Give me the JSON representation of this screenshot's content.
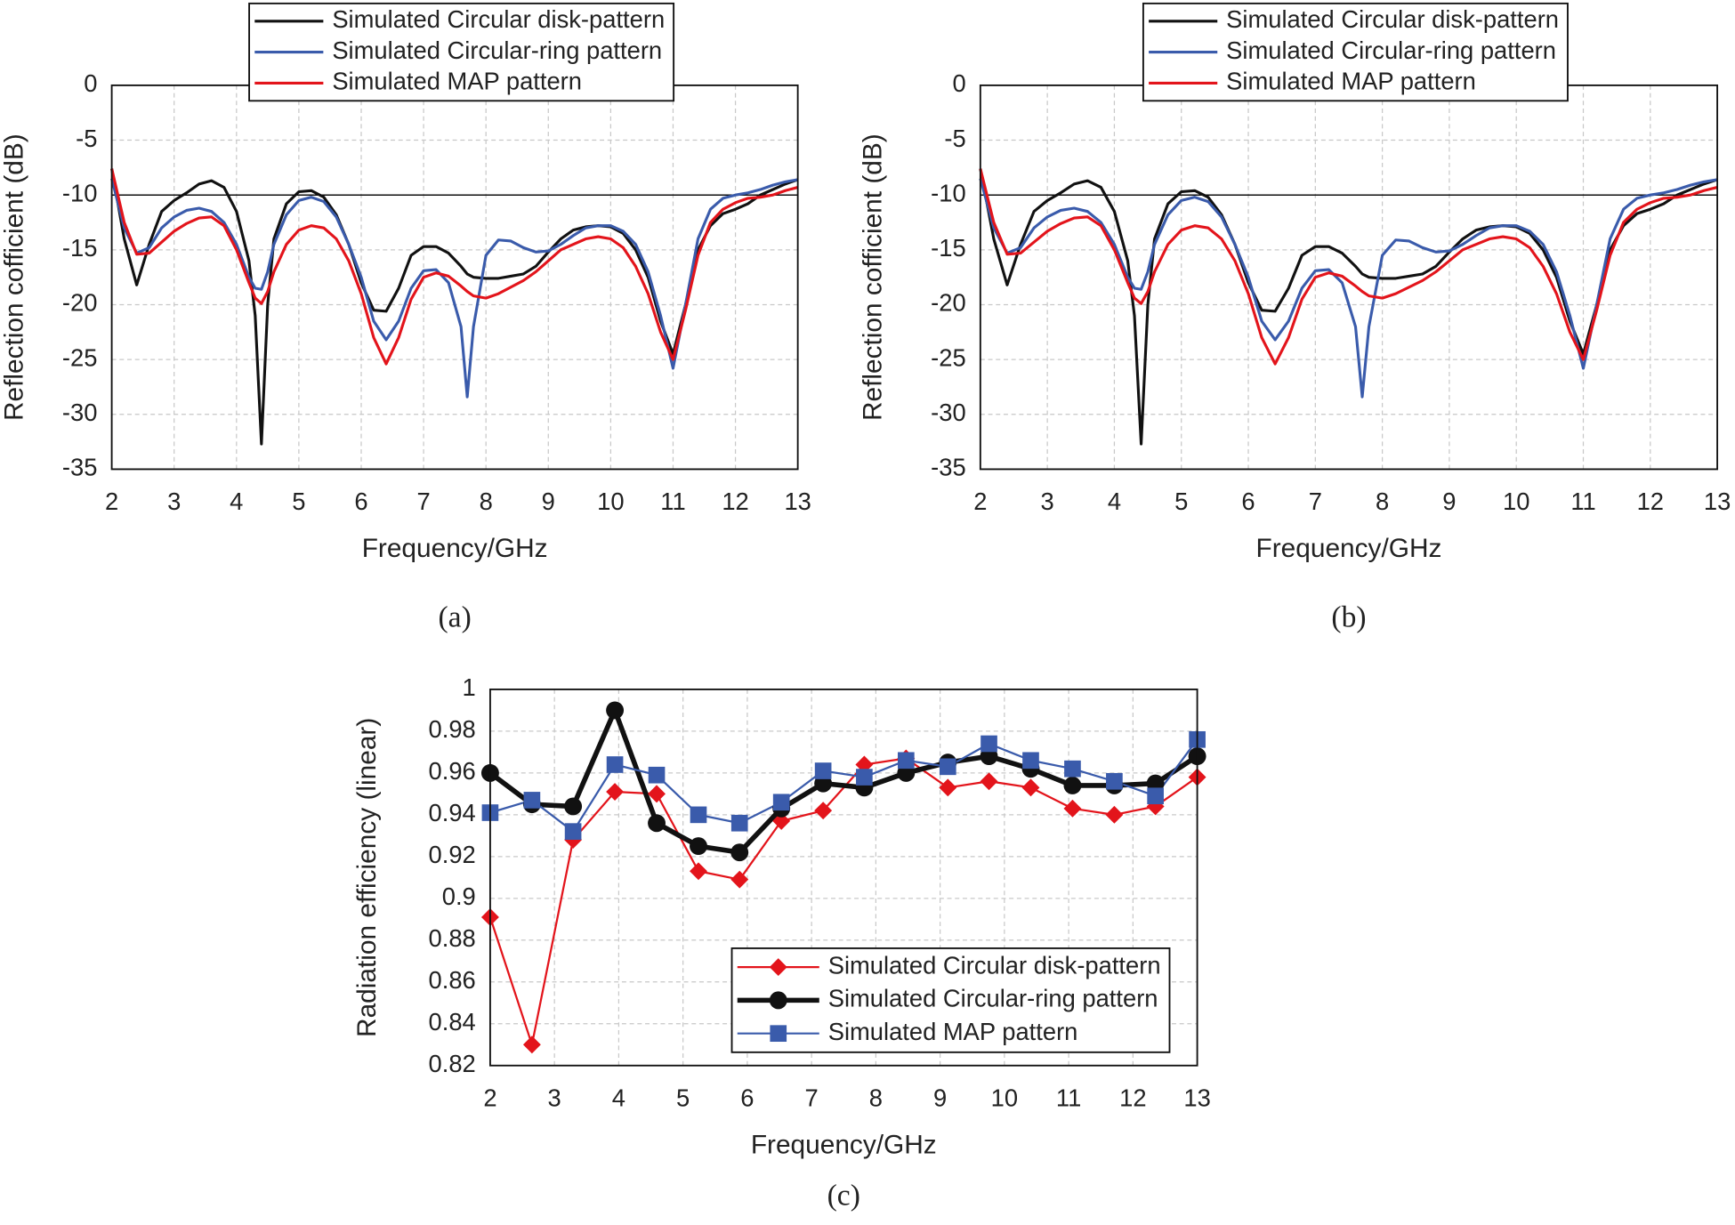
{
  "chart_data": [
    {
      "type": "line",
      "x_label": "Frequency/GHz",
      "y_label": "Reflection cofficient (dB)",
      "caption": "(a)",
      "legend": "top",
      "grid": true,
      "reference_line": -10,
      "xlim": [
        2,
        13
      ],
      "ylim": [
        -35,
        0
      ],
      "xticks": [
        2,
        3,
        4,
        5,
        6,
        7,
        8,
        9,
        10,
        11,
        12,
        13
      ],
      "yticks": [
        -35,
        -30,
        -25,
        -20,
        -15,
        -10,
        -5,
        0
      ],
      "x": [
        2,
        2.2,
        2.4,
        2.6,
        2.8,
        3,
        3.2,
        3.4,
        3.6,
        3.8,
        4,
        4.2,
        4.3,
        4.4,
        4.5,
        4.6,
        4.8,
        5,
        5.2,
        5.4,
        5.6,
        5.8,
        6,
        6.2,
        6.4,
        6.6,
        6.8,
        7,
        7.2,
        7.4,
        7.6,
        7.7,
        7.8,
        8,
        8.2,
        8.4,
        8.6,
        8.8,
        9,
        9.2,
        9.4,
        9.6,
        9.8,
        10,
        10.2,
        10.4,
        10.6,
        10.8,
        11,
        11.2,
        11.4,
        11.6,
        11.8,
        12,
        12.2,
        12.4,
        12.6,
        12.8,
        13
      ],
      "series": [
        {
          "name": "Simulated Circular disk-pattern",
          "color": "#111111",
          "values": [
            -7.6,
            -14,
            -18.2,
            -14.5,
            -11.5,
            -10.5,
            -9.8,
            -9,
            -8.7,
            -9.3,
            -11.5,
            -16,
            -21,
            -32.7,
            -20,
            -14,
            -10.8,
            -9.7,
            -9.6,
            -10.2,
            -11.8,
            -14.5,
            -18,
            -20.5,
            -20.6,
            -18.5,
            -15.5,
            -14.7,
            -14.7,
            -15.3,
            -16.5,
            -17.2,
            -17.5,
            -17.6,
            -17.6,
            -17.4,
            -17.2,
            -16.5,
            -15.2,
            -14,
            -13.2,
            -12.9,
            -12.8,
            -12.9,
            -13.5,
            -15,
            -17.5,
            -21.5,
            -24.5,
            -20,
            -15,
            -12.8,
            -11.7,
            -11.3,
            -10.8,
            -10,
            -9.5,
            -9,
            -8.6
          ]
        },
        {
          "name": "Simulated Circular-ring pattern",
          "color": "#3a5bab",
          "values": [
            -8.5,
            -13,
            -15.3,
            -14.8,
            -13,
            -12,
            -11.4,
            -11.2,
            -11.5,
            -12.5,
            -14.5,
            -17.5,
            -18.5,
            -18.6,
            -17,
            -14.5,
            -11.8,
            -10.5,
            -10.2,
            -10.6,
            -12,
            -14.5,
            -17.5,
            -21.5,
            -23.2,
            -21.5,
            -18.5,
            -16.9,
            -16.8,
            -18,
            -22,
            -28.4,
            -22,
            -15.5,
            -14.1,
            -14.2,
            -14.8,
            -15.2,
            -15.1,
            -14.5,
            -13.7,
            -13,
            -12.8,
            -12.8,
            -13.3,
            -14.5,
            -17,
            -21,
            -25.8,
            -20,
            -14,
            -11.3,
            -10.3,
            -10,
            -9.8,
            -9.5,
            -9.1,
            -8.8,
            -8.6
          ]
        },
        {
          "name": "Simulated MAP pattern",
          "color": "#e3141b",
          "values": [
            -7.6,
            -12.5,
            -15.4,
            -15.3,
            -14.3,
            -13.3,
            -12.6,
            -12.1,
            -12,
            -12.8,
            -15,
            -18,
            -19.4,
            -19.9,
            -18.8,
            -17,
            -14.5,
            -13.2,
            -12.8,
            -13,
            -14,
            -16,
            -19,
            -23,
            -25.4,
            -23,
            -19.5,
            -17.5,
            -17.1,
            -17.4,
            -18.3,
            -18.8,
            -19.2,
            -19.4,
            -19,
            -18.4,
            -17.8,
            -17,
            -16,
            -15,
            -14.5,
            -14,
            -13.8,
            -14,
            -14.8,
            -16.5,
            -19,
            -22.5,
            -25,
            -20.5,
            -15.5,
            -12.5,
            -11.3,
            -10.7,
            -10.3,
            -10.2,
            -10,
            -9.6,
            -9.3
          ]
        }
      ]
    },
    {
      "type": "line",
      "x_label": "Frequency/GHz",
      "y_label": "Reflection cofficient (dB)",
      "caption": "(b)",
      "legend": "top",
      "grid": true,
      "reference_line": -10,
      "xlim": [
        2,
        13
      ],
      "ylim": [
        -35,
        0
      ],
      "xticks": [
        2,
        3,
        4,
        5,
        6,
        7,
        8,
        9,
        10,
        11,
        12,
        13
      ],
      "yticks": [
        -35,
        -30,
        -25,
        -20,
        -15,
        -10,
        -5,
        0
      ],
      "x": [
        2,
        2.2,
        2.4,
        2.6,
        2.8,
        3,
        3.2,
        3.4,
        3.6,
        3.8,
        4,
        4.2,
        4.3,
        4.4,
        4.5,
        4.6,
        4.8,
        5,
        5.2,
        5.4,
        5.6,
        5.8,
        6,
        6.2,
        6.4,
        6.6,
        6.8,
        7,
        7.2,
        7.4,
        7.6,
        7.7,
        7.8,
        8,
        8.2,
        8.4,
        8.6,
        8.8,
        9,
        9.2,
        9.4,
        9.6,
        9.8,
        10,
        10.2,
        10.4,
        10.6,
        10.8,
        11,
        11.2,
        11.4,
        11.6,
        11.8,
        12,
        12.2,
        12.4,
        12.6,
        12.8,
        13
      ],
      "series": [
        {
          "name": "Simulated Circular disk-pattern",
          "color": "#111111",
          "values": [
            -7.6,
            -14,
            -18.2,
            -14.5,
            -11.5,
            -10.5,
            -9.8,
            -9,
            -8.7,
            -9.3,
            -11.5,
            -16,
            -21,
            -32.7,
            -20,
            -14,
            -10.8,
            -9.7,
            -9.6,
            -10.2,
            -11.8,
            -14.5,
            -18,
            -20.5,
            -20.6,
            -18.5,
            -15.5,
            -14.7,
            -14.7,
            -15.3,
            -16.5,
            -17.2,
            -17.5,
            -17.6,
            -17.6,
            -17.4,
            -17.2,
            -16.5,
            -15.2,
            -14,
            -13.2,
            -12.9,
            -12.8,
            -12.9,
            -13.5,
            -15,
            -17.5,
            -21.5,
            -24.5,
            -20,
            -15,
            -12.8,
            -11.7,
            -11.3,
            -10.8,
            -10,
            -9.5,
            -9,
            -8.6
          ]
        },
        {
          "name": "Simulated Circular-ring pattern",
          "color": "#3a5bab",
          "values": [
            -8.5,
            -13,
            -15.3,
            -14.8,
            -13,
            -12,
            -11.4,
            -11.2,
            -11.5,
            -12.5,
            -14.5,
            -17.5,
            -18.5,
            -18.6,
            -17,
            -14.5,
            -11.8,
            -10.5,
            -10.2,
            -10.6,
            -12,
            -14.5,
            -17.5,
            -21.5,
            -23.2,
            -21.5,
            -18.5,
            -16.9,
            -16.8,
            -18,
            -22,
            -28.4,
            -22,
            -15.5,
            -14.1,
            -14.2,
            -14.8,
            -15.2,
            -15.1,
            -14.5,
            -13.7,
            -13,
            -12.8,
            -12.8,
            -13.3,
            -14.5,
            -17,
            -21,
            -25.8,
            -20,
            -14,
            -11.3,
            -10.3,
            -10,
            -9.8,
            -9.5,
            -9.1,
            -8.8,
            -8.6
          ]
        },
        {
          "name": "Simulated MAP pattern",
          "color": "#e3141b",
          "values": [
            -7.6,
            -12.5,
            -15.4,
            -15.3,
            -14.3,
            -13.3,
            -12.6,
            -12.1,
            -12,
            -12.8,
            -15,
            -18,
            -19.4,
            -19.9,
            -18.8,
            -17,
            -14.5,
            -13.2,
            -12.8,
            -13,
            -14,
            -16,
            -19,
            -23,
            -25.4,
            -23,
            -19.5,
            -17.5,
            -17.1,
            -17.4,
            -18.3,
            -18.8,
            -19.2,
            -19.4,
            -19,
            -18.4,
            -17.8,
            -17,
            -16,
            -15,
            -14.5,
            -14,
            -13.8,
            -14,
            -14.8,
            -16.5,
            -19,
            -22.5,
            -25,
            -20.5,
            -15.5,
            -12.5,
            -11.3,
            -10.7,
            -10.3,
            -10.2,
            -10,
            -9.6,
            -9.3
          ]
        }
      ]
    },
    {
      "type": "line",
      "x_label": "Frequency/GHz",
      "y_label": "Radiation efficiency (linear)",
      "caption": "(c)",
      "legend": "lower right",
      "grid": true,
      "xlim": [
        2,
        13
      ],
      "ylim": [
        0.82,
        1
      ],
      "xticks": [
        2,
        3,
        4,
        5,
        6,
        7,
        8,
        9,
        10,
        11,
        12,
        13
      ],
      "yticks": [
        0.82,
        0.84,
        0.86,
        0.88,
        0.9,
        0.92,
        0.94,
        0.96,
        0.98,
        1
      ],
      "x": [
        2,
        2.65,
        3.29,
        3.94,
        4.59,
        5.24,
        5.88,
        6.53,
        7.18,
        7.82,
        8.47,
        9.12,
        9.76,
        10.41,
        11.06,
        11.71,
        12.35,
        13
      ],
      "series": [
        {
          "name": "Simulated Circular disk-pattern",
          "color": "#e3141b",
          "marker": "diamond",
          "line_width": 1.8,
          "values": [
            0.891,
            0.83,
            0.928,
            0.951,
            0.95,
            0.913,
            0.909,
            0.937,
            0.942,
            0.964,
            0.967,
            0.953,
            0.956,
            0.953,
            0.943,
            0.94,
            0.944,
            0.958
          ]
        },
        {
          "name": "Simulated Circular-ring pattern",
          "color": "#111111",
          "marker": "circle",
          "line_width": 4.5,
          "values": [
            0.96,
            0.945,
            0.944,
            0.99,
            0.936,
            0.925,
            0.922,
            0.943,
            0.955,
            0.953,
            0.96,
            0.965,
            0.968,
            0.962,
            0.954,
            0.954,
            0.955,
            0.968
          ]
        },
        {
          "name": "Simulated MAP pattern",
          "color": "#3a5bab",
          "marker": "square",
          "line_width": 1.8,
          "values": [
            0.941,
            0.947,
            0.932,
            0.964,
            0.959,
            0.94,
            0.936,
            0.946,
            0.961,
            0.958,
            0.966,
            0.963,
            0.974,
            0.966,
            0.962,
            0.956,
            0.949,
            0.976
          ]
        }
      ]
    }
  ]
}
